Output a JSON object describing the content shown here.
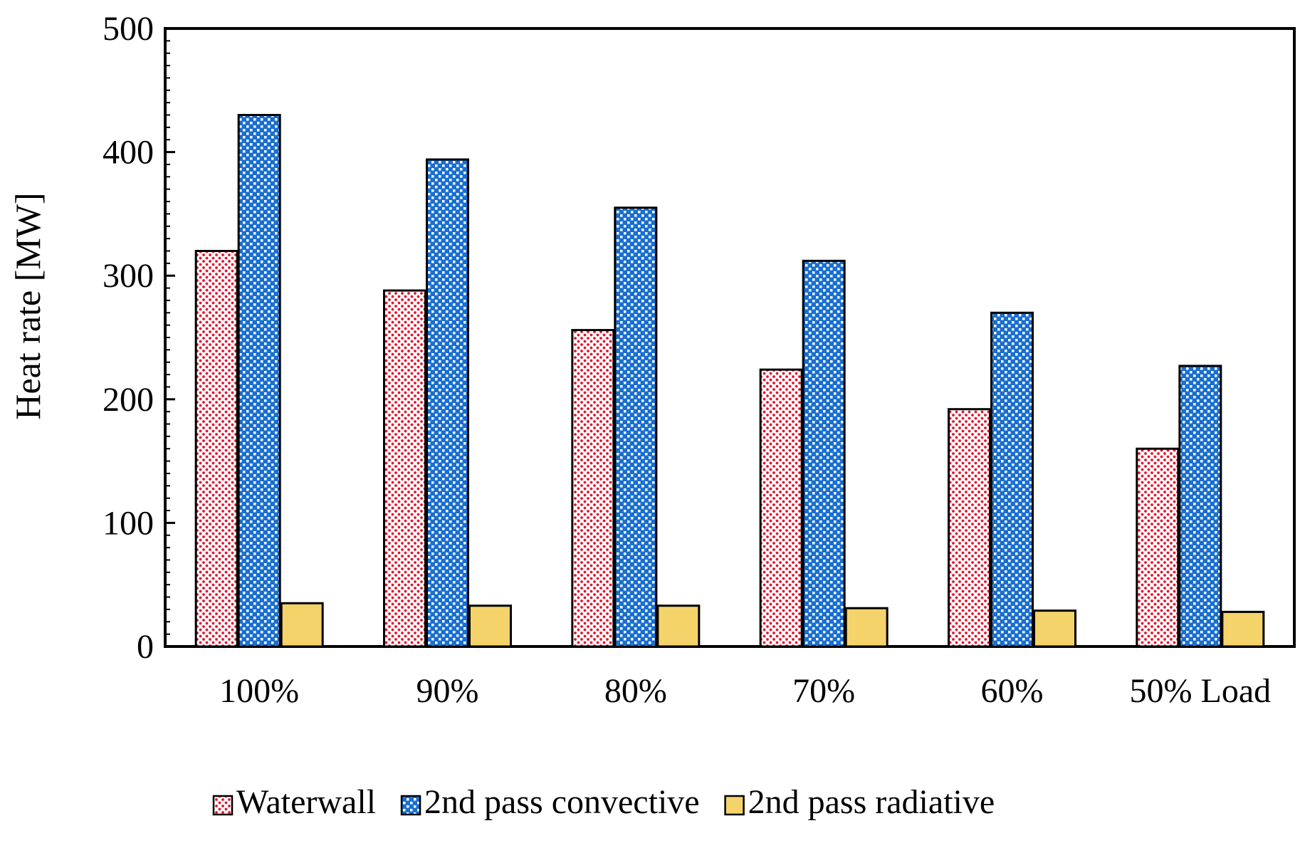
{
  "chart_data": {
    "type": "bar",
    "title": "",
    "xlabel": "",
    "ylabel": "Heat rate [MW]",
    "ylim": [
      0,
      500
    ],
    "yticks": [
      0,
      100,
      200,
      300,
      400,
      500
    ],
    "grid": false,
    "legend_position": "bottom",
    "categories": [
      "100%",
      "90%",
      "80%",
      "70%",
      "60%",
      "50% Load"
    ],
    "series": [
      {
        "name": "Waterwall",
        "color": "#e8102a",
        "pattern": "dots",
        "values": [
          320,
          288,
          256,
          224,
          192,
          160
        ]
      },
      {
        "name": "2nd pass convective",
        "color": "#1a6fd0",
        "pattern": "checker",
        "values": [
          430,
          394,
          355,
          312,
          270,
          227
        ]
      },
      {
        "name": "2nd pass radiative",
        "color": "#f5d36b",
        "pattern": "solid",
        "values": [
          35,
          33,
          33,
          31,
          29,
          28
        ]
      }
    ]
  }
}
